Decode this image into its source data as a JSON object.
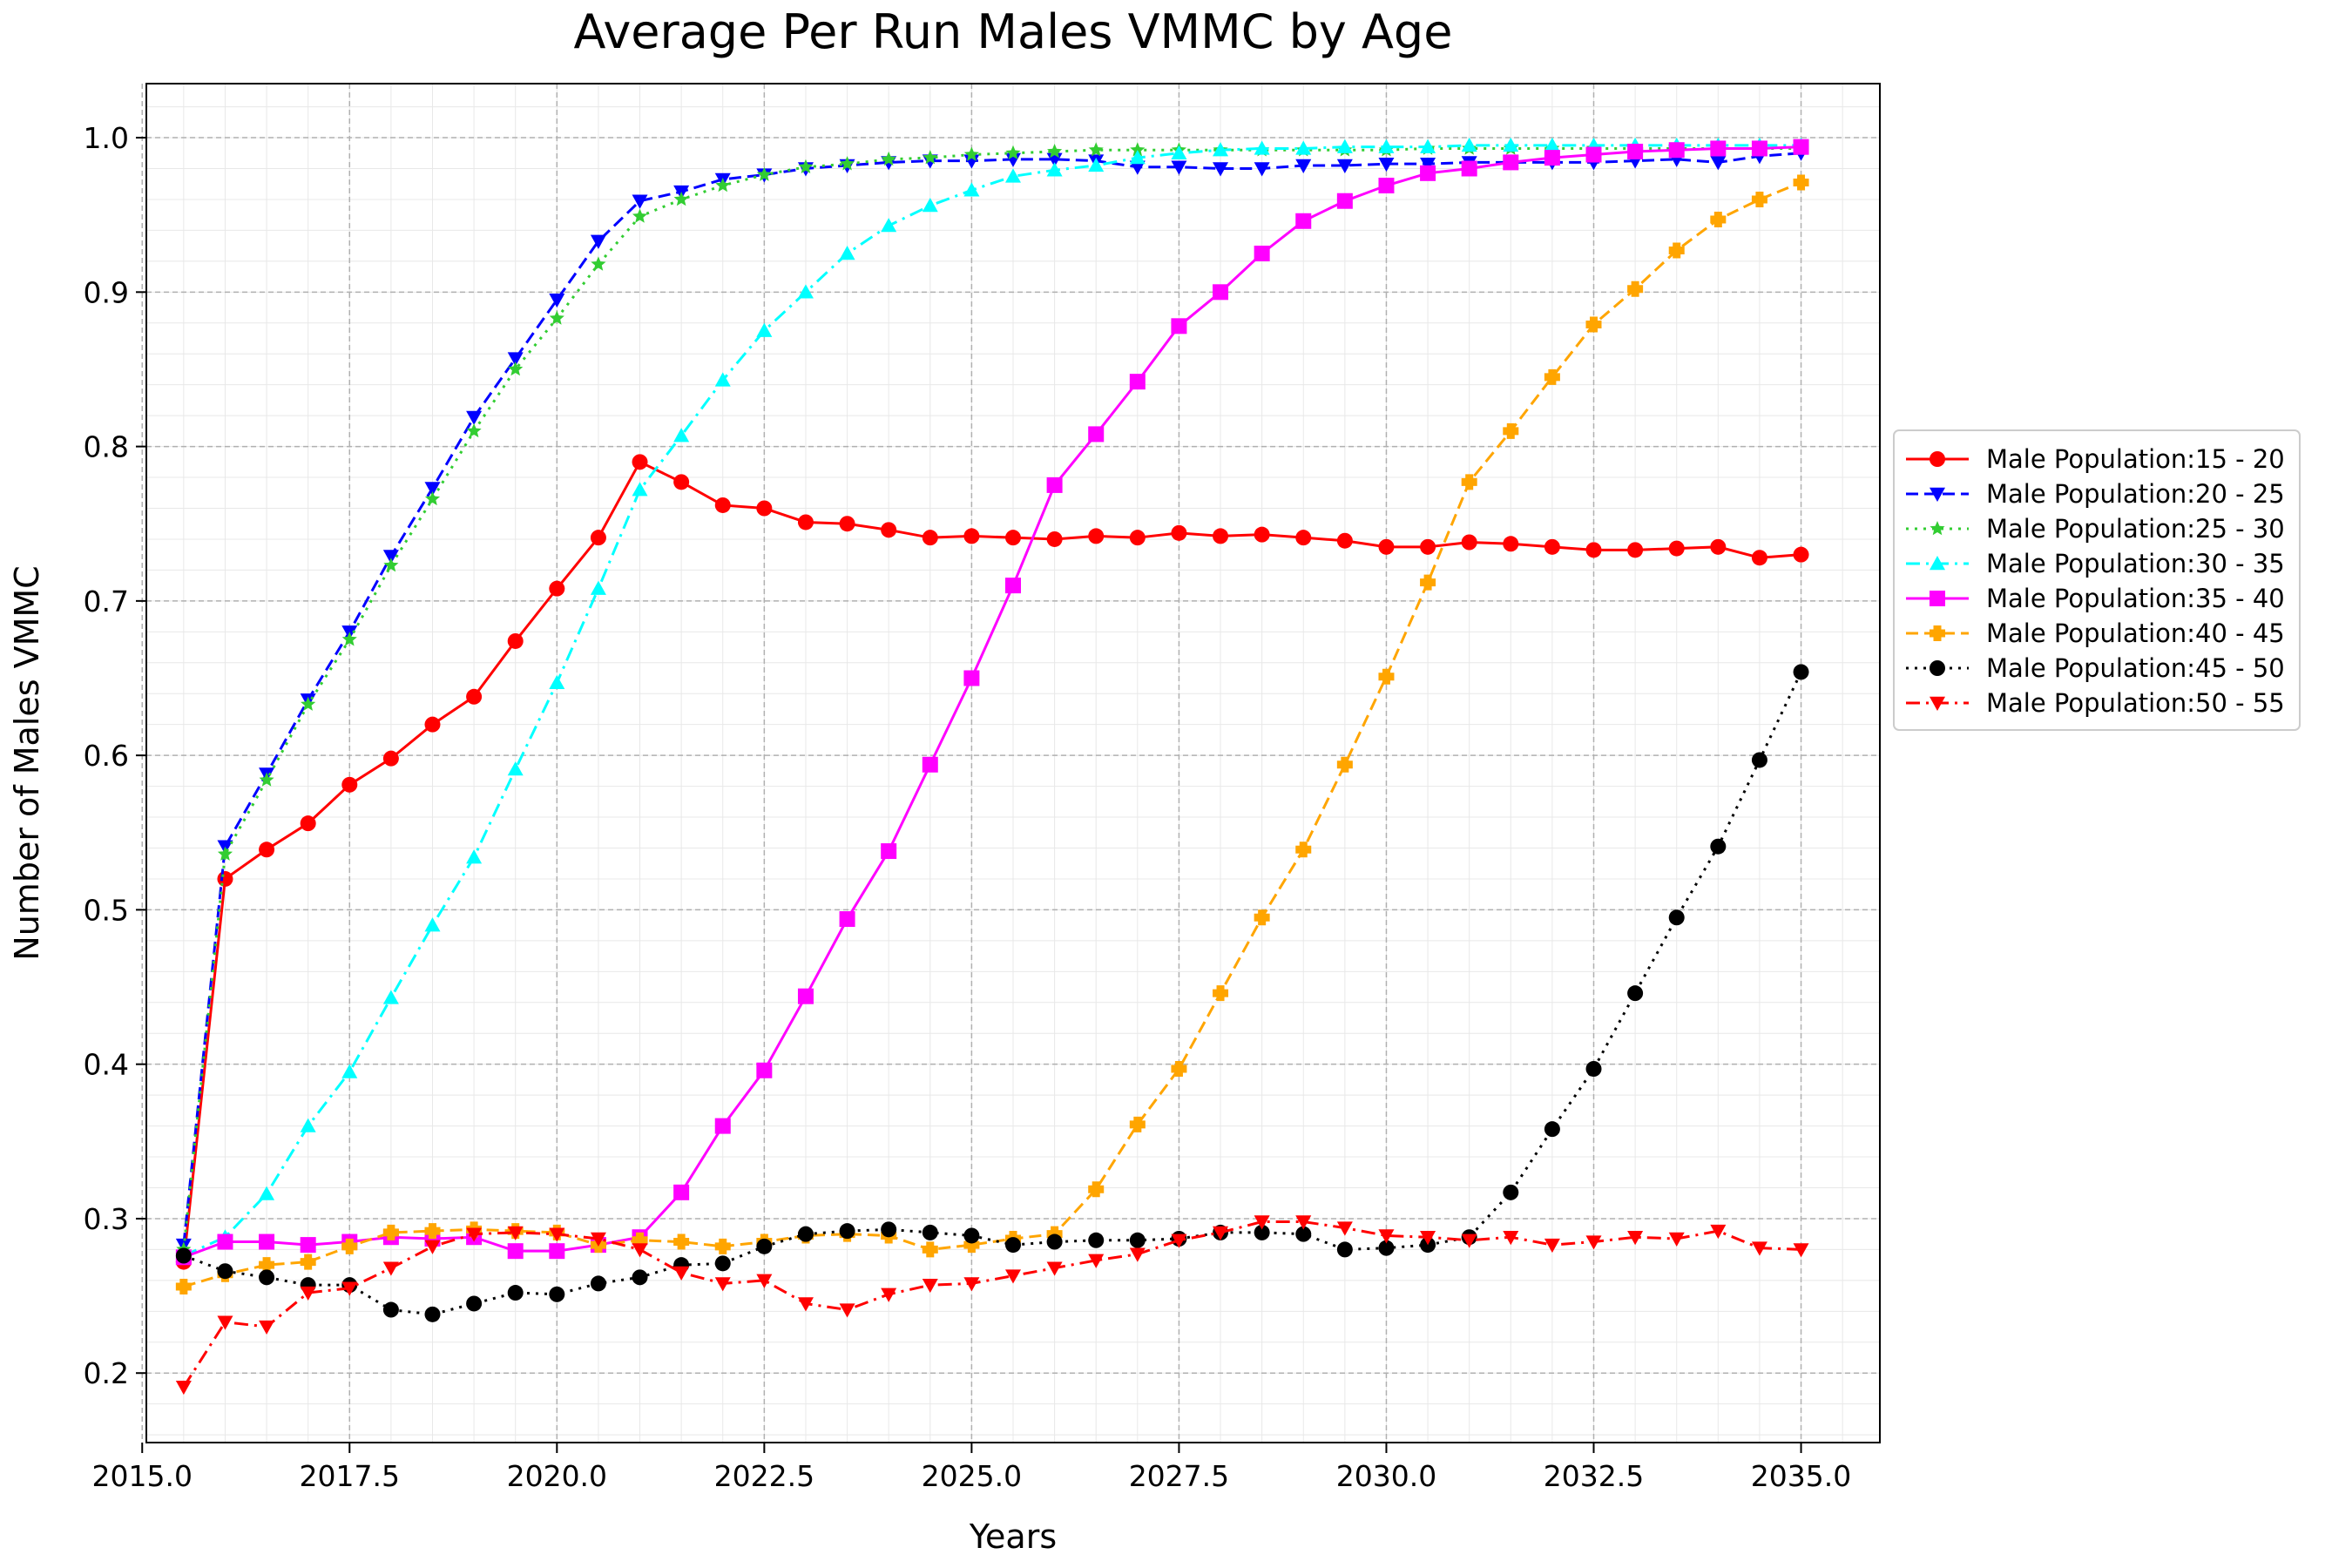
{
  "chart_data": {
    "type": "line",
    "title": "Average Per Run Males VMMC by Age",
    "xlabel": "Years",
    "ylabel": "Number of Males VMMC",
    "xlim": [
      2015.05,
      2035.95
    ],
    "ylim": [
      0.155,
      1.035
    ],
    "xticks": [
      2015.0,
      2017.5,
      2020.0,
      2022.5,
      2025.0,
      2027.5,
      2030.0,
      2032.5,
      2035.0
    ],
    "xtick_labels": [
      "2015.0",
      "2017.5",
      "2020.0",
      "2022.5",
      "2025.0",
      "2027.5",
      "2030.0",
      "2032.5",
      "2035.0"
    ],
    "yticks": [
      0.2,
      0.3,
      0.4,
      0.5,
      0.6,
      0.7,
      0.8,
      0.9,
      1.0
    ],
    "ytick_labels": [
      "0.2",
      "0.3",
      "0.4",
      "0.5",
      "0.6",
      "0.7",
      "0.8",
      "0.9",
      "1.0"
    ],
    "grid": true,
    "legend_position": "right",
    "x": [
      2015.5,
      2016.0,
      2016.5,
      2017.0,
      2017.5,
      2018.0,
      2018.5,
      2019.0,
      2019.5,
      2020.0,
      2020.5,
      2021.0,
      2021.5,
      2022.0,
      2022.5,
      2023.0,
      2023.5,
      2024.0,
      2024.5,
      2025.0,
      2025.5,
      2026.0,
      2026.5,
      2027.0,
      2027.5,
      2028.0,
      2028.5,
      2029.0,
      2029.5,
      2030.0,
      2030.5,
      2031.0,
      2031.5,
      2032.0,
      2032.5,
      2033.0,
      2033.5,
      2034.0,
      2034.5,
      2035.0
    ],
    "series": [
      {
        "name": "Male Population:15 - 20",
        "color": "#ff0000",
        "dash": "solid",
        "marker": "circle",
        "values": [
          0.272,
          0.52,
          0.539,
          0.556,
          0.581,
          0.598,
          0.62,
          0.638,
          0.674,
          0.708,
          0.741,
          0.79,
          0.777,
          0.762,
          0.76,
          0.751,
          0.75,
          0.746,
          0.741,
          0.742,
          0.741,
          0.74,
          0.742,
          0.741,
          0.744,
          0.742,
          0.743,
          0.741,
          0.739,
          0.735,
          0.735,
          0.738,
          0.737,
          0.735,
          0.733,
          0.733,
          0.734,
          0.735,
          0.728,
          0.73
        ]
      },
      {
        "name": "Male Population:20 - 25",
        "color": "#0000ff",
        "dash": "dashed",
        "marker": "triangle-down",
        "values": [
          0.283,
          0.541,
          0.588,
          0.636,
          0.68,
          0.729,
          0.773,
          0.819,
          0.857,
          0.895,
          0.933,
          0.959,
          0.965,
          0.973,
          0.976,
          0.98,
          0.982,
          0.984,
          0.985,
          0.985,
          0.986,
          0.986,
          0.985,
          0.981,
          0.981,
          0.98,
          0.98,
          0.982,
          0.982,
          0.983,
          0.983,
          0.984,
          0.984,
          0.984,
          0.984,
          0.985,
          0.986,
          0.984,
          0.988,
          0.99
        ]
      },
      {
        "name": "Male Population:25 - 30",
        "color": "#32cd32",
        "dash": "dotted",
        "marker": "star",
        "values": [
          0.28,
          0.536,
          0.584,
          0.633,
          0.675,
          0.723,
          0.766,
          0.81,
          0.85,
          0.883,
          0.918,
          0.949,
          0.96,
          0.969,
          0.976,
          0.981,
          0.983,
          0.986,
          0.987,
          0.989,
          0.99,
          0.991,
          0.992,
          0.992,
          0.992,
          0.992,
          0.992,
          0.992,
          0.992,
          0.992,
          0.993,
          0.993,
          0.993,
          0.993,
          0.993,
          0.993,
          0.993,
          0.993,
          0.993,
          0.993
        ]
      },
      {
        "name": "Male Population:30 - 35",
        "color": "#00ffff",
        "dash": "dashdot",
        "marker": "triangle-up",
        "values": [
          0.276,
          0.288,
          0.316,
          0.36,
          0.395,
          0.443,
          0.49,
          0.534,
          0.591,
          0.647,
          0.708,
          0.772,
          0.807,
          0.843,
          0.875,
          0.9,
          0.925,
          0.943,
          0.956,
          0.966,
          0.975,
          0.979,
          0.982,
          0.987,
          0.99,
          0.992,
          0.993,
          0.993,
          0.994,
          0.994,
          0.994,
          0.995,
          0.995,
          0.995,
          0.995,
          0.995,
          0.995,
          0.995,
          0.995,
          0.995
        ]
      },
      {
        "name": "Male Population:35 - 40",
        "color": "#ff00ff",
        "dash": "solid",
        "marker": "square",
        "values": [
          0.275,
          0.285,
          0.285,
          0.283,
          0.285,
          0.288,
          0.287,
          0.288,
          0.279,
          0.279,
          0.283,
          0.288,
          0.317,
          0.36,
          0.396,
          0.444,
          0.494,
          0.538,
          0.594,
          0.65,
          0.71,
          0.775,
          0.808,
          0.842,
          0.878,
          0.9,
          0.925,
          0.946,
          0.959,
          0.969,
          0.977,
          0.98,
          0.984,
          0.987,
          0.989,
          0.991,
          0.992,
          0.993,
          0.993,
          0.994
        ]
      },
      {
        "name": "Male Population:40 - 45",
        "color": "#ffa500",
        "dash": "dashed",
        "marker": "plus",
        "values": [
          0.256,
          0.264,
          0.27,
          0.272,
          0.282,
          0.291,
          0.292,
          0.293,
          0.292,
          0.291,
          0.283,
          0.286,
          0.285,
          0.282,
          0.285,
          0.289,
          0.29,
          0.289,
          0.28,
          0.283,
          0.287,
          0.29,
          0.319,
          0.361,
          0.397,
          0.446,
          0.495,
          0.539,
          0.594,
          0.651,
          0.712,
          0.777,
          0.81,
          0.845,
          0.879,
          0.902,
          0.927,
          0.947,
          0.96,
          0.971
        ]
      },
      {
        "name": "Male Population:45 - 50",
        "color": "#000000",
        "dash": "dotted",
        "marker": "circle",
        "values": [
          0.276,
          0.266,
          0.262,
          0.257,
          0.257,
          0.241,
          0.238,
          0.245,
          0.252,
          0.251,
          0.258,
          0.262,
          0.27,
          0.271,
          0.282,
          0.29,
          0.292,
          0.293,
          0.291,
          0.289,
          0.283,
          0.285,
          0.286,
          0.286,
          0.287,
          0.291,
          0.291,
          0.29,
          0.28,
          0.281,
          0.283,
          0.288,
          0.317,
          0.358,
          0.397,
          0.446,
          0.495,
          0.541,
          0.597,
          0.654
        ]
      },
      {
        "name": "Male Population:50 - 55",
        "color": "#ff0000",
        "dash": "dashdot",
        "marker": "triangle-down",
        "values": [
          0.191,
          0.233,
          0.23,
          0.252,
          0.255,
          0.268,
          0.282,
          0.29,
          0.291,
          0.29,
          0.287,
          0.28,
          0.265,
          0.258,
          0.26,
          0.245,
          0.241,
          0.251,
          0.257,
          0.258,
          0.263,
          0.268,
          0.273,
          0.277,
          0.286,
          0.291,
          0.298,
          0.298,
          0.294,
          0.289,
          0.288,
          0.286,
          0.288,
          0.283,
          0.285,
          0.288,
          0.287,
          0.292,
          0.281,
          0.28
        ]
      }
    ]
  }
}
